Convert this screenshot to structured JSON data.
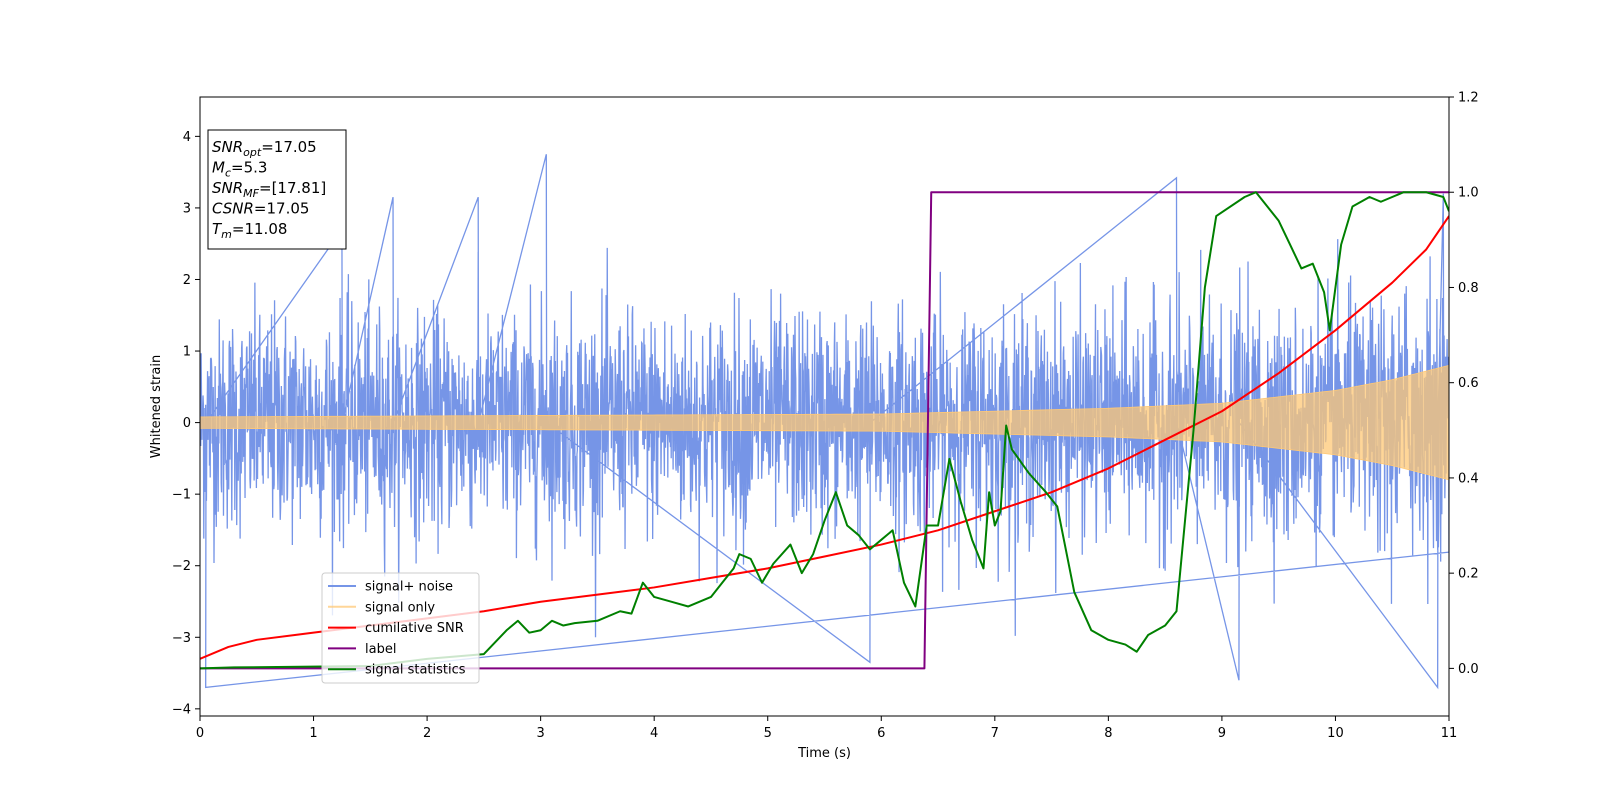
{
  "chart_data": {
    "type": "line",
    "xlabel": "Time (s)",
    "ylabel": "Whitened strain",
    "xlim": [
      0,
      11
    ],
    "ylim_left": [
      -4.1,
      4.55
    ],
    "ylim_right": [
      -0.1,
      1.2
    ],
    "x_ticks": [
      0,
      1,
      2,
      3,
      4,
      5,
      6,
      7,
      8,
      9,
      10,
      11
    ],
    "y_ticks_left": [
      -4,
      -3,
      -2,
      -1,
      0,
      1,
      2,
      3,
      4
    ],
    "y_ticks_right": [
      0.0,
      0.2,
      0.4,
      0.6,
      0.8,
      1.0,
      1.2
    ],
    "x_tick_labels": [
      "0",
      "1",
      "2",
      "3",
      "4",
      "5",
      "6",
      "7",
      "8",
      "9",
      "10",
      "11"
    ],
    "y_tick_labels_left": [
      "−4",
      "−3",
      "−2",
      "−1",
      "0",
      "1",
      "2",
      "3",
      "4"
    ],
    "y_tick_labels_right": [
      "0.0",
      "0.2",
      "0.4",
      "0.6",
      "0.8",
      "1.0",
      "1.2"
    ],
    "grid": false,
    "legend_position": "lower-left",
    "info_box": {
      "position": "upper-left",
      "lines": [
        {
          "base": "SNR",
          "sub": "opt",
          "rest": "=17.05"
        },
        {
          "base": "M",
          "sub": "c",
          "rest": "=5.3"
        },
        {
          "base": "SNR",
          "sub": "MF",
          "rest": "=[17.81]"
        },
        {
          "base": "CSNR",
          "sub": "",
          "rest": "=17.05"
        },
        {
          "base": "T",
          "sub": "m",
          "rest": "=11.08"
        }
      ]
    },
    "series": [
      {
        "name": "signal+ noise",
        "axis": "left",
        "color": "#6f8fe6",
        "kind": "noise-band",
        "noise_std": 0.75,
        "peak_values": [
          [
            0.05,
            -3.7
          ],
          [
            1.25,
            2.7
          ],
          [
            1.7,
            3.15
          ],
          [
            2.45,
            3.15
          ],
          [
            3.05,
            3.75
          ],
          [
            5.9,
            -3.35
          ],
          [
            8.6,
            3.42
          ],
          [
            9.15,
            -3.6
          ],
          [
            10.9,
            -3.7
          ],
          [
            10.95,
            3.2
          ]
        ]
      },
      {
        "name": "signal only",
        "axis": "left",
        "color": "#ffc875",
        "kind": "chirp",
        "amplitude": [
          [
            0,
            0.08
          ],
          [
            6,
            0.12
          ],
          [
            8,
            0.2
          ],
          [
            9,
            0.27
          ],
          [
            10,
            0.45
          ],
          [
            10.5,
            0.6
          ],
          [
            11,
            0.8
          ]
        ]
      },
      {
        "name": "cumilative SNR",
        "axis": "right",
        "color": "#ff0000",
        "x": [
          0,
          0.25,
          0.5,
          1,
          1.5,
          2,
          2.5,
          3,
          3.5,
          4,
          4.5,
          5,
          5.5,
          6,
          6.5,
          7,
          7.5,
          8,
          8.5,
          9,
          9.5,
          10,
          10.5,
          10.8,
          11
        ],
        "y": [
          0.02,
          0.045,
          0.06,
          0.075,
          0.09,
          0.105,
          0.12,
          0.14,
          0.155,
          0.17,
          0.19,
          0.21,
          0.235,
          0.26,
          0.29,
          0.33,
          0.37,
          0.42,
          0.48,
          0.54,
          0.62,
          0.71,
          0.81,
          0.88,
          0.95
        ]
      },
      {
        "name": "label",
        "axis": "right",
        "color": "#800080",
        "x": [
          0,
          6.38,
          6.44,
          11
        ],
        "y": [
          0,
          0,
          1.0,
          1.0
        ]
      },
      {
        "name": "signal statistics",
        "axis": "right",
        "color": "#008000",
        "x": [
          0,
          0.3,
          1.5,
          2.0,
          2.5,
          2.7,
          2.8,
          2.9,
          3.0,
          3.1,
          3.2,
          3.3,
          3.5,
          3.7,
          3.8,
          3.9,
          4.0,
          4.15,
          4.3,
          4.4,
          4.5,
          4.6,
          4.7,
          4.75,
          4.85,
          4.95,
          5.05,
          5.2,
          5.3,
          5.4,
          5.5,
          5.6,
          5.7,
          5.8,
          5.9,
          6.0,
          6.1,
          6.2,
          6.3,
          6.4,
          6.5,
          6.6,
          6.7,
          6.8,
          6.9,
          6.95,
          7.0,
          7.05,
          7.1,
          7.15,
          7.3,
          7.45,
          7.55,
          7.7,
          7.85,
          8.0,
          8.15,
          8.25,
          8.35,
          8.5,
          8.6,
          8.75,
          8.85,
          8.95,
          9.2,
          9.3,
          9.4,
          9.5,
          9.6,
          9.7,
          9.8,
          9.9,
          9.95,
          10.05,
          10.15,
          10.3,
          10.4,
          10.6,
          10.8,
          10.95,
          11.0
        ],
        "y": [
          0.0,
          0.002,
          0.005,
          0.02,
          0.03,
          0.08,
          0.1,
          0.075,
          0.08,
          0.1,
          0.09,
          0.095,
          0.1,
          0.12,
          0.115,
          0.18,
          0.15,
          0.14,
          0.13,
          0.14,
          0.15,
          0.18,
          0.21,
          0.24,
          0.23,
          0.18,
          0.22,
          0.26,
          0.2,
          0.24,
          0.31,
          0.37,
          0.3,
          0.28,
          0.25,
          0.27,
          0.29,
          0.18,
          0.13,
          0.3,
          0.3,
          0.44,
          0.35,
          0.27,
          0.21,
          0.37,
          0.3,
          0.33,
          0.51,
          0.46,
          0.41,
          0.37,
          0.34,
          0.16,
          0.08,
          0.06,
          0.05,
          0.035,
          0.07,
          0.09,
          0.12,
          0.5,
          0.8,
          0.95,
          0.99,
          1.0,
          0.97,
          0.94,
          0.89,
          0.84,
          0.85,
          0.79,
          0.71,
          0.89,
          0.97,
          0.99,
          0.98,
          1.0,
          1.0,
          0.99,
          0.96
        ]
      }
    ]
  }
}
